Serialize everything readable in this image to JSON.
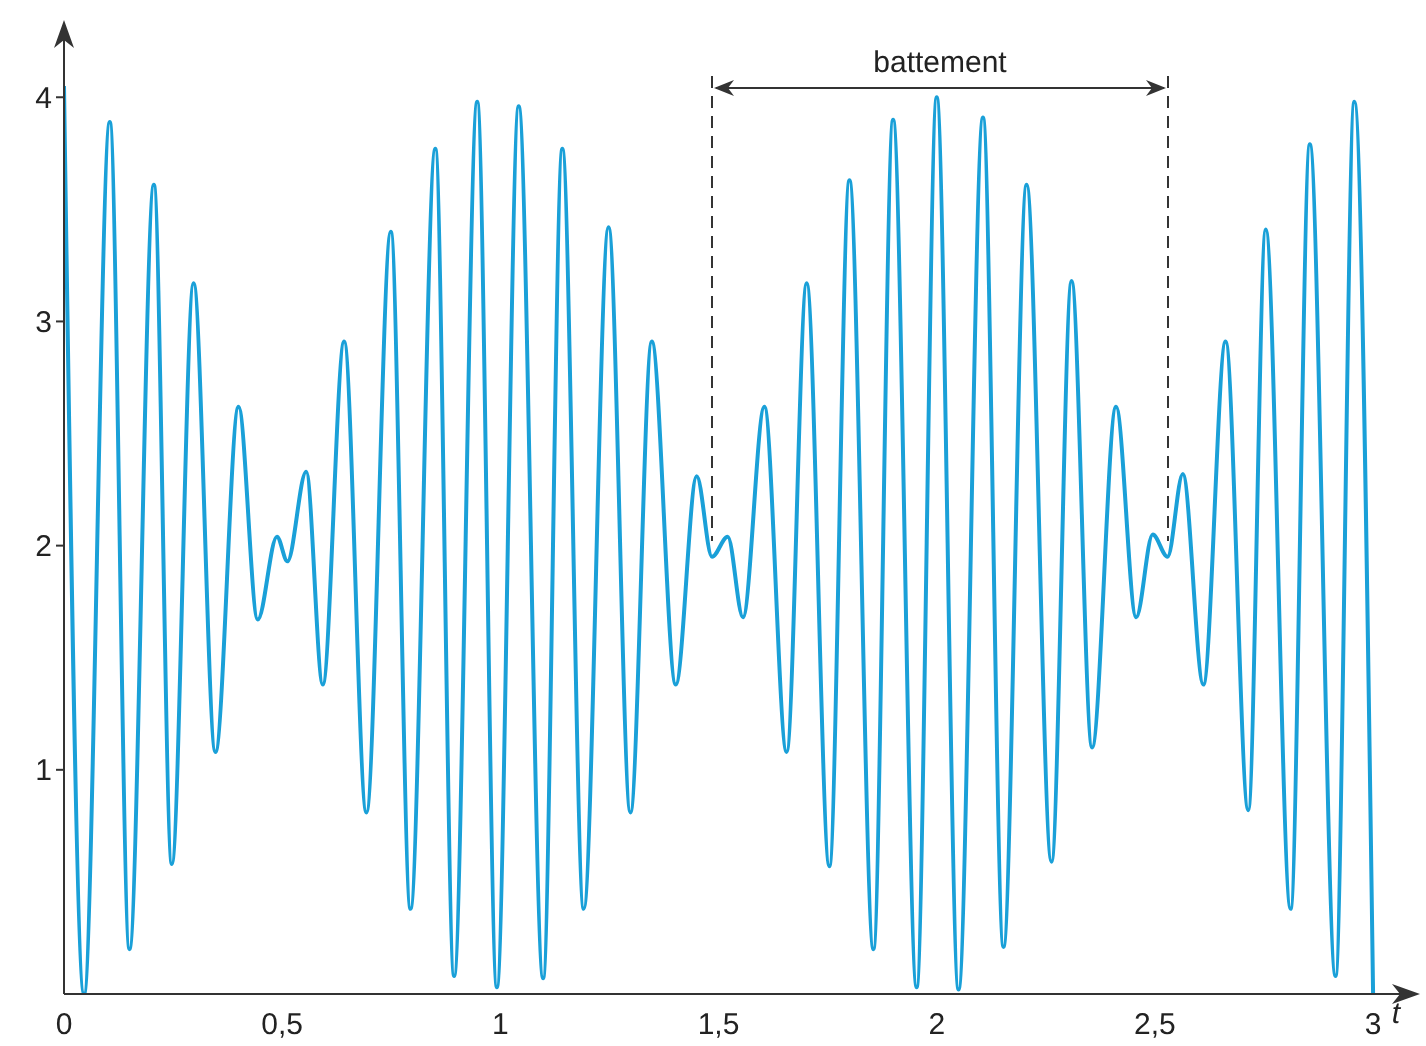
{
  "chart_data": {
    "type": "line",
    "xlabel": "t",
    "x": [
      0,
      0.046,
      0.105,
      0.15,
      0.206,
      0.247,
      0.297,
      0.347,
      0.4,
      0.444,
      0.488,
      0.512,
      0.555,
      0.593,
      0.642,
      0.693,
      0.749,
      0.794,
      0.851,
      0.894,
      0.947,
      0.992,
      1.042,
      1.098,
      1.142,
      1.191,
      1.248,
      1.298,
      1.347,
      1.402,
      1.45,
      1.485,
      1.521,
      1.556,
      1.605,
      1.656,
      1.702,
      1.754,
      1.8,
      1.855,
      1.9,
      1.954,
      2.0,
      2.05,
      2.106,
      2.153,
      2.206,
      2.263,
      2.309,
      2.356,
      2.411,
      2.457,
      2.495,
      2.529,
      2.564,
      2.611,
      2.662,
      2.714,
      2.754,
      2.811,
      2.855,
      2.914,
      2.957,
      3.0
    ],
    "series": [
      {
        "color": "#1aa0d8",
        "values": [
          4.05,
          0.0,
          3.89,
          0.2,
          3.61,
          0.58,
          3.17,
          1.08,
          2.62,
          1.67,
          2.04,
          1.93,
          2.33,
          1.38,
          2.91,
          0.81,
          3.4,
          0.38,
          3.77,
          0.08,
          3.98,
          0.03,
          3.96,
          0.07,
          3.77,
          0.38,
          3.42,
          0.81,
          2.91,
          1.38,
          2.31,
          1.95,
          2.04,
          1.68,
          2.62,
          1.08,
          3.17,
          0.57,
          3.63,
          0.2,
          3.9,
          0.03,
          4.0,
          0.02,
          3.91,
          0.21,
          3.61,
          0.59,
          3.18,
          1.1,
          2.62,
          1.68,
          2.05,
          1.95,
          2.32,
          1.38,
          2.91,
          0.82,
          3.41,
          0.38,
          3.79,
          0.08,
          3.98,
          0.0
        ]
      }
    ],
    "xlim": [
      0,
      3.08
    ],
    "ylim": [
      0,
      4.3
    ],
    "xticks": [
      0,
      {
        "value": 0.5,
        "label": "0,5"
      },
      1,
      {
        "value": 1.5,
        "label": "1,5"
      },
      2,
      {
        "value": 2.5,
        "label": "2,5"
      },
      3
    ],
    "yticks": [
      1,
      2,
      3,
      4
    ],
    "ref_lines": [
      {
        "axis": "x",
        "value": 1.485,
        "line_style": "dashed",
        "color": "#333333"
      },
      {
        "axis": "x",
        "value": 2.53,
        "line_style": "dashed",
        "color": "#333333"
      }
    ],
    "annotations": [
      "battement"
    ],
    "grid": false,
    "legend": false,
    "marker": "none",
    "line_style": "solid"
  }
}
